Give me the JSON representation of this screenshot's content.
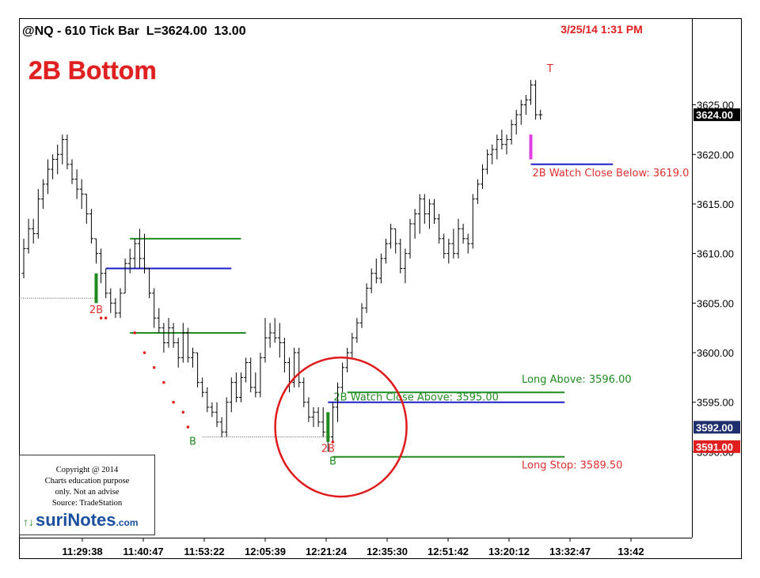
{
  "header": {
    "symbol_line": "@NQ - 610 Tick Bar  L=3624.00  13.00",
    "datetime": "3/25/14 1:31 PM"
  },
  "title": "2B Bottom",
  "chart_data": {
    "type": "bar",
    "subtype": "ohlc_tick_bars",
    "instrument": "@NQ",
    "bar_interval": "610 Tick Bar",
    "last_price": 3624.0,
    "change": 13.0,
    "ylim": [
      3581.5,
      3633.5
    ],
    "y_ticks": [
      3590.0,
      3595.0,
      3600.0,
      3605.0,
      3610.0,
      3615.0,
      3620.0,
      3625.0
    ],
    "y_tick_labels": [
      "3590.00",
      "3595.00",
      "3600.00",
      "3605.00",
      "3610.00",
      "3615.00",
      "3620.00",
      "3625.00"
    ],
    "x_tick_labels": [
      "11:29:38",
      "11:40:47",
      "11:53:22",
      "12:05:39",
      "12:21:24",
      "12:35:30",
      "12:51:42",
      "13:20:12",
      "13:32:47",
      "13:42"
    ],
    "price_badges": [
      {
        "value": "3624.00",
        "color": "#000000"
      },
      {
        "value": "3592.00",
        "color": "#1f2f6e"
      },
      {
        "value": "3591.00",
        "color": "#e02020"
      }
    ],
    "bars": [
      {
        "o": 3608.0,
        "h": 3611.5,
        "l": 3607.5,
        "c": 3610.5
      },
      {
        "o": 3610.5,
        "h": 3613.5,
        "l": 3610.0,
        "c": 3612.5
      },
      {
        "o": 3612.5,
        "h": 3613.5,
        "l": 3611.0,
        "c": 3612.0
      },
      {
        "o": 3612.0,
        "h": 3616.5,
        "l": 3611.5,
        "c": 3615.5
      },
      {
        "o": 3615.5,
        "h": 3617.5,
        "l": 3614.5,
        "c": 3617.0
      },
      {
        "o": 3617.0,
        "h": 3619.5,
        "l": 3616.0,
        "c": 3618.5
      },
      {
        "o": 3618.5,
        "h": 3620.0,
        "l": 3617.5,
        "c": 3619.5
      },
      {
        "o": 3619.5,
        "h": 3621.0,
        "l": 3618.0,
        "c": 3620.0
      },
      {
        "o": 3620.0,
        "h": 3622.0,
        "l": 3619.0,
        "c": 3621.5
      },
      {
        "o": 3621.5,
        "h": 3622.0,
        "l": 3618.5,
        "c": 3619.0
      },
      {
        "o": 3619.0,
        "h": 3619.5,
        "l": 3617.0,
        "c": 3617.5
      },
      {
        "o": 3617.5,
        "h": 3618.5,
        "l": 3615.5,
        "c": 3616.5
      },
      {
        "o": 3616.5,
        "h": 3617.5,
        "l": 3614.5,
        "c": 3616.0
      },
      {
        "o": 3616.0,
        "h": 3616.0,
        "l": 3613.0,
        "c": 3614.0
      },
      {
        "o": 3614.0,
        "h": 3614.5,
        "l": 3611.0,
        "c": 3611.5
      },
      {
        "o": 3611.5,
        "h": 3611.5,
        "l": 3609.0,
        "c": 3610.0
      },
      {
        "o": 3610.0,
        "h": 3610.5,
        "l": 3607.0,
        "c": 3608.0
      },
      {
        "o": 3608.0,
        "h": 3608.5,
        "l": 3605.5,
        "c": 3606.0
      },
      {
        "o": 3606.0,
        "h": 3606.5,
        "l": 3604.0,
        "c": 3605.0
      },
      {
        "o": 3605.0,
        "h": 3605.5,
        "l": 3603.5,
        "c": 3604.0
      },
      {
        "o": 3604.0,
        "h": 3606.5,
        "l": 3603.5,
        "c": 3606.0
      },
      {
        "o": 3606.0,
        "h": 3609.5,
        "l": 3606.0,
        "c": 3609.0
      },
      {
        "o": 3609.0,
        "h": 3610.5,
        "l": 3608.0,
        "c": 3609.5
      },
      {
        "o": 3609.5,
        "h": 3611.5,
        "l": 3608.5,
        "c": 3611.0
      },
      {
        "o": 3611.0,
        "h": 3612.5,
        "l": 3608.5,
        "c": 3609.5
      },
      {
        "o": 3609.5,
        "h": 3612.0,
        "l": 3608.0,
        "c": 3608.5
      },
      {
        "o": 3608.5,
        "h": 3608.5,
        "l": 3605.5,
        "c": 3606.0
      },
      {
        "o": 3606.0,
        "h": 3606.5,
        "l": 3602.5,
        "c": 3603.5
      },
      {
        "o": 3603.5,
        "h": 3604.5,
        "l": 3602.0,
        "c": 3602.5
      },
      {
        "o": 3602.5,
        "h": 3603.0,
        "l": 3600.0,
        "c": 3601.0
      },
      {
        "o": 3601.0,
        "h": 3603.5,
        "l": 3600.5,
        "c": 3602.5
      },
      {
        "o": 3602.5,
        "h": 3603.0,
        "l": 3600.5,
        "c": 3601.0
      },
      {
        "o": 3601.0,
        "h": 3601.5,
        "l": 3598.5,
        "c": 3599.5
      },
      {
        "o": 3599.5,
        "h": 3603.0,
        "l": 3599.0,
        "c": 3602.0
      },
      {
        "o": 3602.0,
        "h": 3602.5,
        "l": 3599.0,
        "c": 3599.5
      },
      {
        "o": 3599.5,
        "h": 3600.5,
        "l": 3598.5,
        "c": 3600.0
      },
      {
        "o": 3600.0,
        "h": 3600.0,
        "l": 3596.5,
        "c": 3597.0
      },
      {
        "o": 3597.0,
        "h": 3597.5,
        "l": 3595.5,
        "c": 3596.0
      },
      {
        "o": 3596.0,
        "h": 3596.5,
        "l": 3594.0,
        "c": 3594.5
      },
      {
        "o": 3594.5,
        "h": 3595.0,
        "l": 3593.5,
        "c": 3594.0
      },
      {
        "o": 3594.0,
        "h": 3595.0,
        "l": 3592.5,
        "c": 3593.0
      },
      {
        "o": 3593.0,
        "h": 3593.5,
        "l": 3591.5,
        "c": 3592.0
      },
      {
        "o": 3592.0,
        "h": 3595.5,
        "l": 3591.5,
        "c": 3595.0
      },
      {
        "o": 3595.0,
        "h": 3597.5,
        "l": 3594.0,
        "c": 3597.0
      },
      {
        "o": 3597.0,
        "h": 3598.0,
        "l": 3595.0,
        "c": 3595.5
      },
      {
        "o": 3595.5,
        "h": 3598.0,
        "l": 3595.0,
        "c": 3597.5
      },
      {
        "o": 3597.5,
        "h": 3599.5,
        "l": 3597.0,
        "c": 3599.0
      },
      {
        "o": 3599.0,
        "h": 3599.5,
        "l": 3596.0,
        "c": 3596.5
      },
      {
        "o": 3596.5,
        "h": 3598.0,
        "l": 3595.5,
        "c": 3596.0
      },
      {
        "o": 3596.0,
        "h": 3600.0,
        "l": 3595.5,
        "c": 3599.5
      },
      {
        "o": 3599.5,
        "h": 3603.5,
        "l": 3599.0,
        "c": 3601.5
      },
      {
        "o": 3601.5,
        "h": 3603.0,
        "l": 3600.5,
        "c": 3602.0
      },
      {
        "o": 3602.0,
        "h": 3603.5,
        "l": 3601.0,
        "c": 3601.5
      },
      {
        "o": 3601.5,
        "h": 3603.0,
        "l": 3599.5,
        "c": 3601.0
      },
      {
        "o": 3601.0,
        "h": 3601.5,
        "l": 3598.0,
        "c": 3599.0
      },
      {
        "o": 3599.0,
        "h": 3599.5,
        "l": 3596.0,
        "c": 3597.0
      },
      {
        "o": 3597.0,
        "h": 3600.5,
        "l": 3596.5,
        "c": 3600.0
      },
      {
        "o": 3600.0,
        "h": 3600.5,
        "l": 3596.5,
        "c": 3597.0
      },
      {
        "o": 3597.0,
        "h": 3597.5,
        "l": 3594.5,
        "c": 3595.0
      },
      {
        "o": 3595.0,
        "h": 3595.5,
        "l": 3593.0,
        "c": 3593.5
      },
      {
        "o": 3593.5,
        "h": 3594.5,
        "l": 3592.5,
        "c": 3594.0
      },
      {
        "o": 3594.0,
        "h": 3594.5,
        "l": 3592.5,
        "c": 3593.0
      },
      {
        "o": 3593.0,
        "h": 3594.5,
        "l": 3591.5,
        "c": 3592.0
      },
      {
        "o": 3592.0,
        "h": 3592.0,
        "l": 3590.0,
        "c": 3591.5
      },
      {
        "o": 3591.5,
        "h": 3595.0,
        "l": 3591.0,
        "c": 3594.5
      },
      {
        "o": 3594.5,
        "h": 3597.0,
        "l": 3593.0,
        "c": 3596.5
      },
      {
        "o": 3596.5,
        "h": 3599.0,
        "l": 3596.0,
        "c": 3598.5
      },
      {
        "o": 3598.5,
        "h": 3600.5,
        "l": 3598.0,
        "c": 3600.0
      },
      {
        "o": 3600.0,
        "h": 3602.0,
        "l": 3599.5,
        "c": 3601.5
      },
      {
        "o": 3601.5,
        "h": 3603.5,
        "l": 3601.0,
        "c": 3603.0
      },
      {
        "o": 3603.0,
        "h": 3605.0,
        "l": 3602.5,
        "c": 3604.5
      },
      {
        "o": 3604.5,
        "h": 3607.0,
        "l": 3604.0,
        "c": 3606.5
      },
      {
        "o": 3606.5,
        "h": 3608.5,
        "l": 3606.0,
        "c": 3608.0
      },
      {
        "o": 3608.0,
        "h": 3609.5,
        "l": 3607.0,
        "c": 3607.5
      },
      {
        "o": 3607.5,
        "h": 3610.0,
        "l": 3607.0,
        "c": 3609.5
      },
      {
        "o": 3609.5,
        "h": 3611.5,
        "l": 3609.0,
        "c": 3611.0
      },
      {
        "o": 3611.0,
        "h": 3613.0,
        "l": 3610.5,
        "c": 3612.5
      },
      {
        "o": 3612.5,
        "h": 3612.5,
        "l": 3610.0,
        "c": 3611.0
      },
      {
        "o": 3611.0,
        "h": 3611.5,
        "l": 3608.0,
        "c": 3608.5
      },
      {
        "o": 3608.5,
        "h": 3610.5,
        "l": 3607.0,
        "c": 3610.0
      },
      {
        "o": 3610.0,
        "h": 3613.5,
        "l": 3609.5,
        "c": 3613.0
      },
      {
        "o": 3613.0,
        "h": 3614.5,
        "l": 3611.5,
        "c": 3614.0
      },
      {
        "o": 3614.0,
        "h": 3616.0,
        "l": 3612.0,
        "c": 3615.5
      },
      {
        "o": 3615.5,
        "h": 3616.0,
        "l": 3613.0,
        "c": 3614.0
      },
      {
        "o": 3614.0,
        "h": 3615.5,
        "l": 3612.5,
        "c": 3615.0
      },
      {
        "o": 3615.0,
        "h": 3615.5,
        "l": 3613.0,
        "c": 3613.5
      },
      {
        "o": 3613.5,
        "h": 3614.0,
        "l": 3611.0,
        "c": 3611.5
      },
      {
        "o": 3611.5,
        "h": 3612.0,
        "l": 3609.5,
        "c": 3610.0
      },
      {
        "o": 3610.0,
        "h": 3611.5,
        "l": 3609.0,
        "c": 3611.0
      },
      {
        "o": 3611.0,
        "h": 3612.5,
        "l": 3609.5,
        "c": 3610.0
      },
      {
        "o": 3610.0,
        "h": 3613.5,
        "l": 3609.5,
        "c": 3612.5
      },
      {
        "o": 3612.5,
        "h": 3613.0,
        "l": 3611.0,
        "c": 3611.5
      },
      {
        "o": 3611.5,
        "h": 3612.0,
        "l": 3610.0,
        "c": 3611.0
      },
      {
        "o": 3611.0,
        "h": 3616.0,
        "l": 3610.5,
        "c": 3615.5
      },
      {
        "o": 3615.5,
        "h": 3617.5,
        "l": 3615.0,
        "c": 3617.0
      },
      {
        "o": 3617.0,
        "h": 3619.0,
        "l": 3616.5,
        "c": 3618.5
      },
      {
        "o": 3618.5,
        "h": 3620.5,
        "l": 3618.0,
        "c": 3620.0
      },
      {
        "o": 3620.0,
        "h": 3621.0,
        "l": 3619.0,
        "c": 3620.5
      },
      {
        "o": 3620.5,
        "h": 3622.0,
        "l": 3619.5,
        "c": 3621.5
      },
      {
        "o": 3621.5,
        "h": 3622.5,
        "l": 3620.5,
        "c": 3621.0
      },
      {
        "o": 3621.0,
        "h": 3622.0,
        "l": 3620.0,
        "c": 3621.5
      },
      {
        "o": 3621.5,
        "h": 3623.5,
        "l": 3621.0,
        "c": 3623.0
      },
      {
        "o": 3623.0,
        "h": 3624.5,
        "l": 3622.0,
        "c": 3624.0
      },
      {
        "o": 3624.0,
        "h": 3625.5,
        "l": 3623.0,
        "c": 3625.0
      },
      {
        "o": 3625.0,
        "h": 3626.0,
        "l": 3624.0,
        "c": 3625.5
      },
      {
        "o": 3625.5,
        "h": 3627.5,
        "l": 3625.0,
        "c": 3627.0
      },
      {
        "o": 3627.0,
        "h": 3627.5,
        "l": 3623.5,
        "c": 3624.0
      },
      {
        "o": 3624.0,
        "h": 3624.5,
        "l": 3623.5,
        "c": 3624.0
      }
    ],
    "highlight_bars": [
      {
        "bar_index": 15,
        "top": 3608.0,
        "bottom": 3605.0,
        "color": "#1c8a1c"
      },
      {
        "bar_index": 63,
        "top": 3594.0,
        "bottom": 3591.0,
        "color": "#1c8a1c"
      },
      {
        "bar_index": 105,
        "top": 3622.0,
        "bottom": 3619.5,
        "color": "#e040e0"
      }
    ],
    "levels": [
      {
        "price": 3611.5,
        "from_bar": 22,
        "to_bar": 45,
        "color": "#228b22"
      },
      {
        "price": 3608.5,
        "from_bar": 17,
        "to_bar": 43,
        "color": "#1c1cc8"
      },
      {
        "price": 3602.0,
        "from_bar": 22,
        "to_bar": 46,
        "color": "#228b22"
      },
      {
        "price": 3595.0,
        "from_bar": 63,
        "to_bar": 112,
        "color": "#1c1cc8",
        "label": "2B Watch Close Above: 3595.00"
      },
      {
        "price": 3596.0,
        "from_bar": 67,
        "to_bar": 112,
        "color": "#228b22",
        "label": "Long Above: 3596.00"
      },
      {
        "price": 3589.5,
        "from_bar": 64,
        "to_bar": 112,
        "color": "#228b22",
        "label": "Long Stop: 3589.50"
      },
      {
        "price": 3619.0,
        "from_bar": 105,
        "to_bar": 122,
        "color": "#1c1cc8",
        "label": "2B Watch Close Below: 3619.0"
      }
    ],
    "dotted_levels": [
      {
        "price": 3605.5,
        "from_bar": 0,
        "to_bar": 15
      },
      {
        "price": 3591.5,
        "from_bar": 38,
        "to_bar": 63
      }
    ],
    "markers": [
      {
        "text": "2B",
        "bar_index": 15,
        "price": 3604.0,
        "color": "#e03030"
      },
      {
        "text": "B",
        "bar_index": 35,
        "price": 3590.7,
        "color": "#228b22"
      },
      {
        "text": "2B",
        "bar_index": 63,
        "price": 3590.0,
        "color": "#e03030"
      },
      {
        "text": "B",
        "bar_index": 64,
        "price": 3588.7,
        "color": "#228b22"
      },
      {
        "text": "T",
        "bar_index": 109,
        "price": 3628.3,
        "color": "#e03030"
      }
    ],
    "red_dots": [
      {
        "bar_index": 16,
        "price": 3603.5
      },
      {
        "bar_index": 17,
        "price": 3603.5
      },
      {
        "bar_index": 23,
        "price": 3602.0
      },
      {
        "bar_index": 25,
        "price": 3600.0
      },
      {
        "bar_index": 27,
        "price": 3598.5
      },
      {
        "bar_index": 29,
        "price": 3597.0
      },
      {
        "bar_index": 31,
        "price": 3595.0
      },
      {
        "bar_index": 33,
        "price": 3594.0
      },
      {
        "bar_index": 34,
        "price": 3592.5
      },
      {
        "bar_index": 64,
        "price": 3591.0
      }
    ],
    "ellipse": {
      "center_bar": 66,
      "center_price": 3592.5,
      "color": "#e01a1a"
    }
  },
  "copyright": {
    "line1": "Copyright @ 2014",
    "line2": "Charts education purpose",
    "line3": "only. Not an advise",
    "line4": "Source: TradeStation",
    "logo_suri": "suri",
    "logo_notes": "Notes",
    "logo_dotcom": ".com"
  },
  "colors": {
    "title": "#e02020",
    "datetime": "#e02020",
    "long_green": "#228b22",
    "watch_blue": "#1c1cc8",
    "stop_label": "#e03030"
  }
}
